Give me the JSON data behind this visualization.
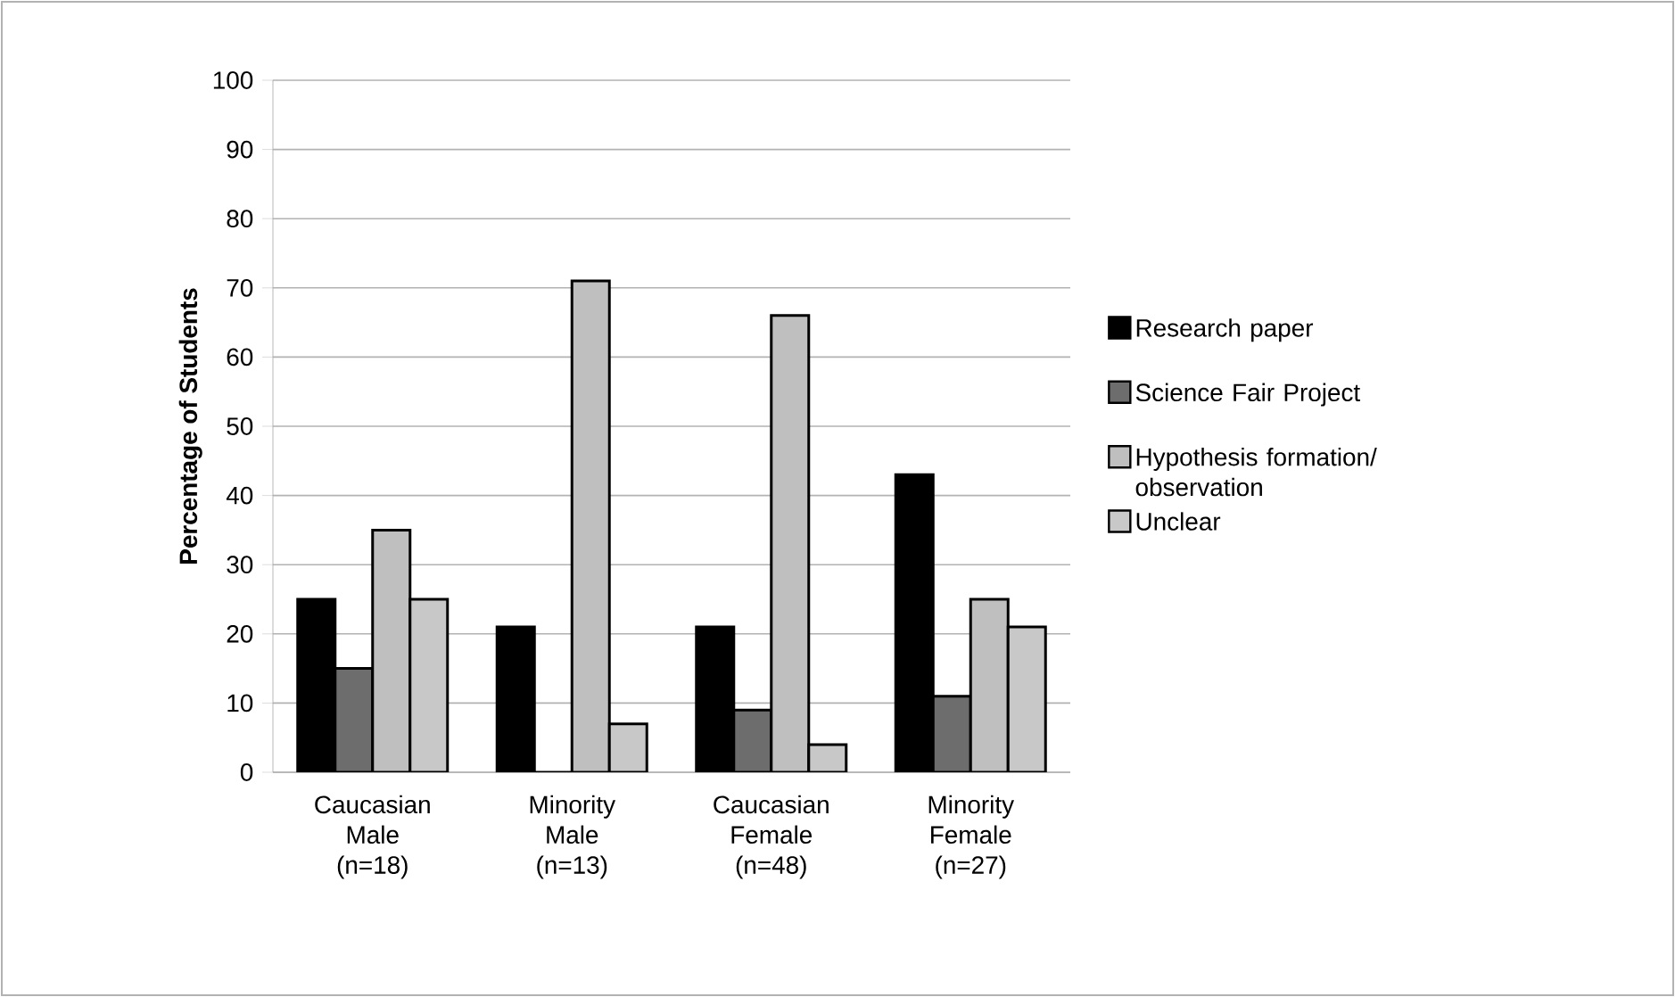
{
  "chart_data": {
    "type": "bar",
    "ylabel": "Percentage of Students",
    "categories": [
      "Caucasian Male (n=18)",
      "Minority Male (n=13)",
      "Caucasian Female (n=48)",
      "Minority Female (n=27)"
    ],
    "series": [
      {
        "name": "Research paper",
        "color": "#000000",
        "values": [
          25,
          21,
          21,
          43
        ]
      },
      {
        "name": "Science Fair Project",
        "color": "#6d6d6d",
        "values": [
          15,
          0,
          9,
          11
        ]
      },
      {
        "name": "Hypothesis formation/ observation",
        "color": "#bfbfbf",
        "values": [
          35,
          71,
          66,
          25
        ]
      },
      {
        "name": "Unclear",
        "color": "#c8c8c8",
        "values": [
          25,
          7,
          4,
          21
        ]
      }
    ],
    "ylim": [
      0,
      100
    ],
    "yticks": [
      0,
      10,
      20,
      30,
      40,
      50,
      60,
      70,
      80,
      90,
      100
    ],
    "grid": "y",
    "legend": "right"
  }
}
